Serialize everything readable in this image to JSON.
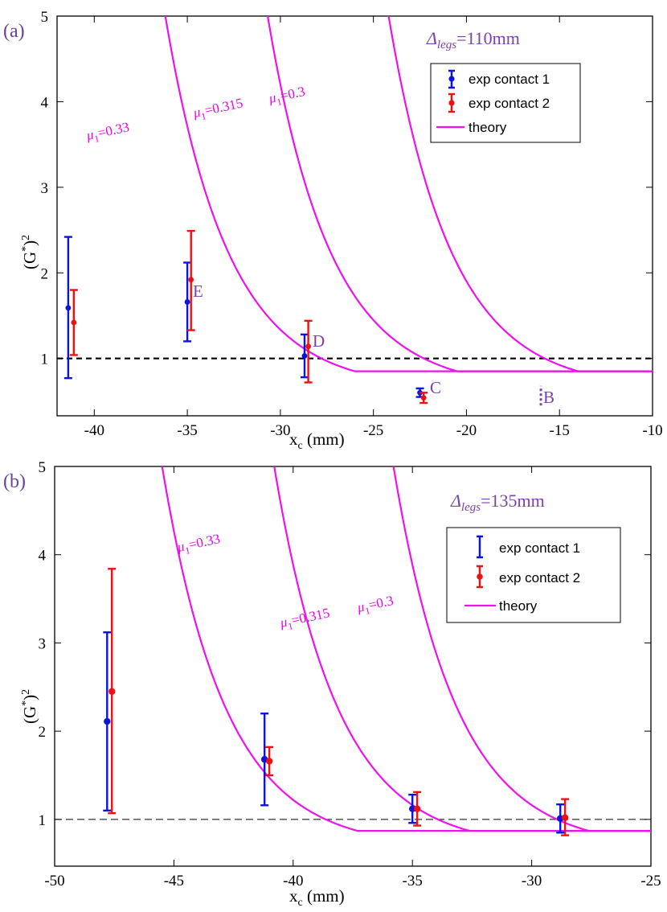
{
  "colors": {
    "contact1": "#0a14dd",
    "contact2": "#ee1111",
    "theory": "#ee11ee",
    "annot": "#7a3fb0"
  },
  "chart_data": [
    {
      "panel": "(a)",
      "type": "scatter",
      "title": "Δlegs=110mm",
      "title_symbol": "Δ",
      "title_sub": "legs",
      "title_value": "=110mm",
      "xlabel": "x",
      "xlabel_sub": "c",
      "xlabel_unit": " (mm)",
      "ylabel": "(G",
      "ylabel_sup1": "*",
      "ylabel_mid": ")",
      "ylabel_sup2": "2",
      "xlim": [
        -42,
        -10
      ],
      "ylim": [
        0.33,
        5
      ],
      "xticks": [
        -40,
        -35,
        -30,
        -25,
        -20,
        -15,
        -10
      ],
      "xtick_labels": [
        "-40",
        "-35",
        "-30",
        "-25",
        "-20",
        "-15",
        "-10"
      ],
      "yticks": [
        1,
        2,
        3,
        4,
        5
      ],
      "ytick_labels": [
        "1",
        "2",
        "3",
        "4",
        "5"
      ],
      "reference_line": {
        "y": 1,
        "style": "dashed"
      },
      "legend": {
        "position": "top-right",
        "entries": [
          "exp contact 1",
          "exp contact 2",
          "theory"
        ]
      },
      "series": [
        {
          "name": "exp contact 1",
          "points": [
            {
              "x": -41.4,
              "y": 1.59,
              "lo": 0.77,
              "hi": 2.42
            },
            {
              "x": -35.0,
              "y": 1.66,
              "lo": 1.2,
              "hi": 2.12
            },
            {
              "x": -28.7,
              "y": 1.03,
              "lo": 0.78,
              "hi": 1.28
            },
            {
              "x": -22.5,
              "y": 0.6,
              "lo": 0.55,
              "hi": 0.65
            }
          ]
        },
        {
          "name": "exp contact 2",
          "points": [
            {
              "x": -41.1,
              "y": 1.42,
              "lo": 1.04,
              "hi": 1.8
            },
            {
              "x": -34.8,
              "y": 1.92,
              "lo": 1.33,
              "hi": 2.49
            },
            {
              "x": -28.5,
              "y": 1.14,
              "lo": 0.72,
              "hi": 1.44
            },
            {
              "x": -22.3,
              "y": 0.54,
              "lo": 0.48,
              "hi": 0.6
            }
          ]
        }
      ],
      "theory_curves": [
        {
          "label_mu": "μ",
          "label_sub": "1",
          "label_val": "=0.33",
          "x_plateau": -26.0,
          "plateau": 0.85,
          "A": 0.215,
          "k": 0.2957,
          "x_max": -10
        },
        {
          "label_mu": "μ",
          "label_sub": "1",
          "label_val": "=0.315",
          "x_plateau": -20.5,
          "plateau": 0.85,
          "A": 0.215,
          "k": 0.2957,
          "x_max": -10
        },
        {
          "label_mu": "μ",
          "label_sub": "1",
          "label_val": "=0.3",
          "x_plateau": -14.0,
          "plateau": 0.85,
          "A": 0.215,
          "k": 0.2957,
          "x_max": -10
        }
      ],
      "point_labels": [
        "E",
        "D",
        "C",
        "B"
      ],
      "marker_B": {
        "x": -16.0,
        "y_lo": 0.45,
        "y_hi": 0.68
      }
    },
    {
      "panel": "(b)",
      "type": "scatter",
      "title": "Δlegs=135mm",
      "title_symbol": "Δ",
      "title_sub": "legs",
      "title_value": "=135mm",
      "xlabel": "x",
      "xlabel_sub": "c",
      "xlabel_unit": " (mm)",
      "ylabel": "(G",
      "ylabel_sup1": "*",
      "ylabel_mid": ")",
      "ylabel_sup2": "2",
      "xlim": [
        -50,
        -25
      ],
      "ylim": [
        0.47,
        5
      ],
      "xticks": [
        -50,
        -45,
        -40,
        -35,
        -30,
        -25
      ],
      "xtick_labels": [
        "-50",
        "-45",
        "-40",
        "-35",
        "-30",
        "-25"
      ],
      "yticks": [
        1,
        2,
        3,
        4,
        5
      ],
      "ytick_labels": [
        "1",
        "2",
        "3",
        "4",
        "5"
      ],
      "reference_line": {
        "y": 1,
        "style": "dashed"
      },
      "legend": {
        "position": "top-right",
        "entries": [
          "exp contact 1",
          "exp contact 2",
          "theory"
        ]
      },
      "series": [
        {
          "name": "exp contact 1",
          "points": [
            {
              "x": -47.8,
              "y": 2.11,
              "lo": 1.1,
              "hi": 3.12
            },
            {
              "x": -41.2,
              "y": 1.68,
              "lo": 1.16,
              "hi": 2.2
            },
            {
              "x": -35.0,
              "y": 1.12,
              "lo": 0.96,
              "hi": 1.28
            },
            {
              "x": -28.8,
              "y": 1.01,
              "lo": 0.85,
              "hi": 1.17
            }
          ]
        },
        {
          "name": "exp contact 2",
          "points": [
            {
              "x": -47.6,
              "y": 2.45,
              "lo": 1.07,
              "hi": 3.84
            },
            {
              "x": -41.0,
              "y": 1.66,
              "lo": 1.5,
              "hi": 1.82
            },
            {
              "x": -34.8,
              "y": 1.12,
              "lo": 0.93,
              "hi": 1.31
            },
            {
              "x": -28.6,
              "y": 1.02,
              "lo": 0.82,
              "hi": 1.23
            }
          ]
        }
      ],
      "theory_curves": [
        {
          "label_mu": "μ",
          "label_sub": "1",
          "label_val": "=0.33",
          "x_plateau": -37.3,
          "plateau": 0.87,
          "A": 0.2,
          "k": 0.3753,
          "x_max": -25
        },
        {
          "label_mu": "μ",
          "label_sub": "1",
          "label_val": "=0.315",
          "x_plateau": -32.6,
          "plateau": 0.87,
          "A": 0.2,
          "k": 0.3753,
          "x_max": -25
        },
        {
          "label_mu": "μ",
          "label_sub": "1",
          "label_val": "=0.3",
          "x_plateau": -27.6,
          "plateau": 0.87,
          "A": 0.2,
          "k": 0.3753,
          "x_max": -25
        }
      ]
    }
  ]
}
